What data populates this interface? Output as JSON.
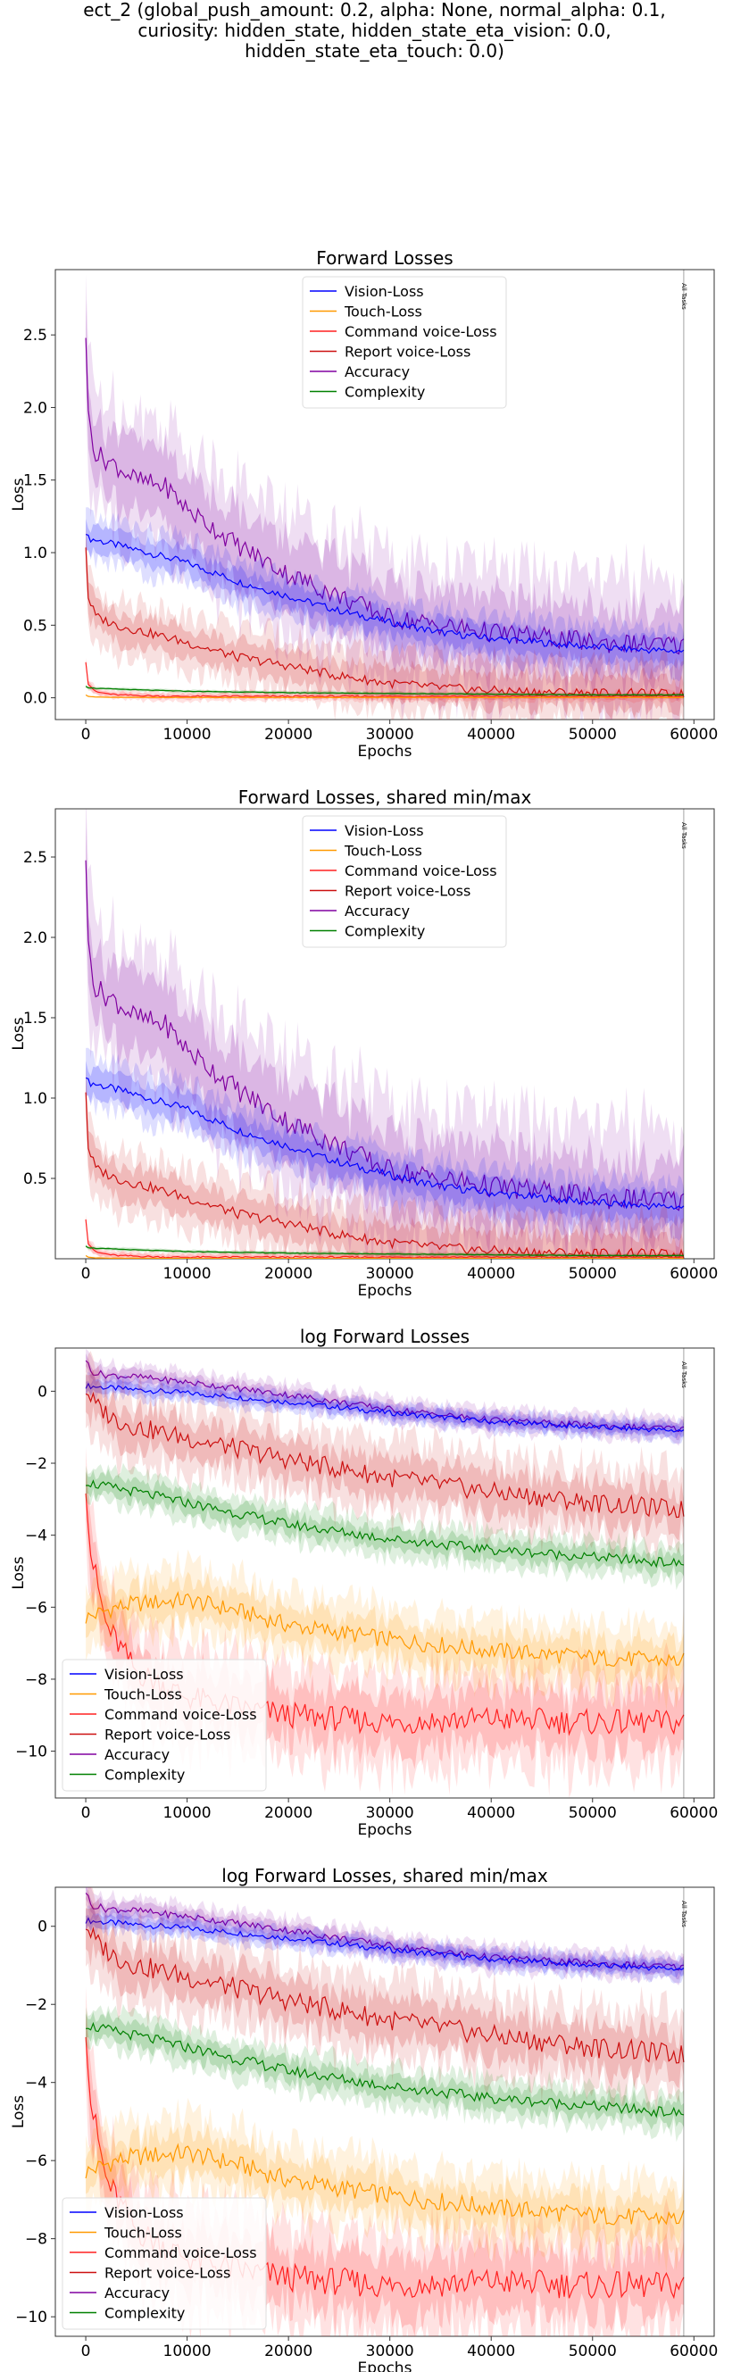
{
  "suptitle": [
    "ect_2 (global_push_amount: 0.2, alpha: None, normal_alpha: 0.1,",
    "curiosity: hidden_state, hidden_state_eta_vision: 0.0,",
    "hidden_state_eta_touch: 0.0)"
  ],
  "colors": {
    "Vision-Loss": "#0000ff",
    "Touch-Loss": "#ff9900",
    "Command voice-Loss": "#ff2020",
    "Report voice-Loss": "#cc1010",
    "Accuracy": "#8000a0",
    "Complexity": "#008000"
  },
  "chart_data": [
    {
      "type": "line",
      "title": "Forward Losses",
      "xlabel": "Epochs",
      "ylabel": "Loss",
      "xlim": [
        -3000,
        62000
      ],
      "ylim": [
        -0.15,
        2.95
      ],
      "xticks": [
        0,
        10000,
        20000,
        30000,
        40000,
        50000,
        60000
      ],
      "yticks": [
        0.0,
        0.5,
        1.0,
        1.5,
        2.0,
        2.5
      ],
      "ytick_labels": [
        "0.0",
        "0.5",
        "1.0",
        "1.5",
        "2.0",
        "2.5"
      ],
      "vline": {
        "x": 59000,
        "label": "All Tasks"
      },
      "legend": "upper center",
      "log": false,
      "series": [
        {
          "name": "Vision-Loss",
          "x": [
            0,
            200,
            2000,
            5000,
            10000,
            15000,
            20000,
            25000,
            30000,
            35000,
            40000,
            45000,
            50000,
            55000,
            59000
          ],
          "values": [
            1.15,
            1.1,
            1.07,
            1.02,
            0.93,
            0.8,
            0.7,
            0.6,
            0.52,
            0.45,
            0.41,
            0.38,
            0.35,
            0.33,
            0.32
          ],
          "band": 0.14
        },
        {
          "name": "Touch-Loss",
          "x": [
            0,
            200,
            1000,
            3000,
            10000,
            20000,
            30000,
            40000,
            50000,
            59000
          ],
          "values": [
            0.02,
            0.01,
            0.005,
            0.003,
            0.002,
            0.002,
            0.002,
            0.002,
            0.002,
            0.002
          ],
          "band": 0.005
        },
        {
          "name": "Command voice-Loss",
          "x": [
            0,
            200,
            1000,
            3000,
            8000,
            15000,
            20000,
            30000,
            40000,
            50000,
            59000
          ],
          "values": [
            0.25,
            0.1,
            0.04,
            0.02,
            0.01,
            0.01,
            0.01,
            0.01,
            0.01,
            0.01,
            0.01
          ],
          "band": 0.03
        },
        {
          "name": "Report voice-Loss",
          "x": [
            0,
            200,
            1000,
            3000,
            6000,
            10000,
            15000,
            20000,
            25000,
            30000,
            35000,
            40000,
            45000,
            50000,
            55000,
            59000
          ],
          "values": [
            1.05,
            0.7,
            0.56,
            0.5,
            0.45,
            0.38,
            0.28,
            0.22,
            0.15,
            0.1,
            0.07,
            0.05,
            0.04,
            0.035,
            0.03,
            0.025
          ],
          "band": 0.18
        },
        {
          "name": "Accuracy",
          "x": [
            0,
            200,
            1000,
            3000,
            5000,
            8000,
            10000,
            15000,
            20000,
            25000,
            30000,
            35000,
            40000,
            45000,
            50000,
            55000,
            59000
          ],
          "values": [
            2.52,
            1.95,
            1.68,
            1.6,
            1.5,
            1.45,
            1.3,
            1.05,
            0.85,
            0.7,
            0.55,
            0.5,
            0.45,
            0.42,
            0.38,
            0.37,
            0.36
          ],
          "band": 0.4
        },
        {
          "name": "Complexity",
          "x": [
            0,
            200,
            1000,
            5000,
            10000,
            20000,
            30000,
            40000,
            50000,
            59000
          ],
          "values": [
            0.08,
            0.07,
            0.065,
            0.055,
            0.045,
            0.035,
            0.03,
            0.025,
            0.02,
            0.02
          ],
          "band": 0.01
        }
      ]
    },
    {
      "type": "line",
      "title": "Forward Losses, shared min/max",
      "xlabel": "Epochs",
      "ylabel": "Loss",
      "xlim": [
        -3000,
        62000
      ],
      "ylim": [
        0.0,
        2.8
      ],
      "xticks": [
        0,
        10000,
        20000,
        30000,
        40000,
        50000,
        60000
      ],
      "yticks": [
        0.5,
        1.0,
        1.5,
        2.0,
        2.5
      ],
      "ytick_labels": [
        "0.5",
        "1.0",
        "1.5",
        "2.0",
        "2.5"
      ],
      "vline": {
        "x": 59000,
        "label": "All Tasks"
      },
      "legend": "upper center",
      "log": false,
      "series": [
        {
          "name": "Vision-Loss",
          "x": [
            0,
            200,
            2000,
            5000,
            10000,
            15000,
            20000,
            25000,
            30000,
            35000,
            40000,
            45000,
            50000,
            55000,
            59000
          ],
          "values": [
            1.15,
            1.1,
            1.07,
            1.02,
            0.93,
            0.8,
            0.7,
            0.6,
            0.52,
            0.45,
            0.41,
            0.38,
            0.35,
            0.33,
            0.32
          ],
          "band": 0.14
        },
        {
          "name": "Touch-Loss",
          "x": [
            0,
            200,
            1000,
            3000,
            10000,
            20000,
            30000,
            40000,
            50000,
            59000
          ],
          "values": [
            0.02,
            0.01,
            0.005,
            0.003,
            0.002,
            0.002,
            0.002,
            0.002,
            0.002,
            0.002
          ],
          "band": 0.005
        },
        {
          "name": "Command voice-Loss",
          "x": [
            0,
            200,
            1000,
            3000,
            8000,
            15000,
            20000,
            30000,
            40000,
            50000,
            59000
          ],
          "values": [
            0.25,
            0.1,
            0.04,
            0.02,
            0.01,
            0.01,
            0.01,
            0.01,
            0.01,
            0.01,
            0.01
          ],
          "band": 0.03
        },
        {
          "name": "Report voice-Loss",
          "x": [
            0,
            200,
            1000,
            3000,
            6000,
            10000,
            15000,
            20000,
            25000,
            30000,
            35000,
            40000,
            45000,
            50000,
            55000,
            59000
          ],
          "values": [
            1.05,
            0.7,
            0.56,
            0.5,
            0.45,
            0.38,
            0.28,
            0.22,
            0.15,
            0.1,
            0.07,
            0.05,
            0.04,
            0.035,
            0.03,
            0.025
          ],
          "band": 0.18
        },
        {
          "name": "Accuracy",
          "x": [
            0,
            200,
            1000,
            3000,
            5000,
            8000,
            10000,
            15000,
            20000,
            25000,
            30000,
            35000,
            40000,
            45000,
            50000,
            55000,
            59000
          ],
          "values": [
            2.52,
            1.95,
            1.68,
            1.6,
            1.5,
            1.45,
            1.3,
            1.05,
            0.85,
            0.7,
            0.55,
            0.5,
            0.45,
            0.42,
            0.38,
            0.37,
            0.36
          ],
          "band": 0.4
        },
        {
          "name": "Complexity",
          "x": [
            0,
            200,
            1000,
            5000,
            10000,
            20000,
            30000,
            40000,
            50000,
            59000
          ],
          "values": [
            0.08,
            0.07,
            0.065,
            0.055,
            0.045,
            0.035,
            0.03,
            0.025,
            0.02,
            0.02
          ],
          "band": 0.01
        }
      ]
    },
    {
      "type": "line",
      "title": "log Forward Losses",
      "xlabel": "Epochs",
      "ylabel": "Loss",
      "xlim": [
        -3000,
        62000
      ],
      "ylim": [
        -11.3,
        1.2
      ],
      "xticks": [
        0,
        10000,
        20000,
        30000,
        40000,
        50000,
        60000
      ],
      "yticks": [
        0,
        -2,
        -4,
        -6,
        -8,
        -10
      ],
      "ytick_labels": [
        "0",
        "−2",
        "−4",
        "−6",
        "−8",
        "−10"
      ],
      "vline": {
        "x": 59000,
        "label": "All Tasks"
      },
      "legend": "lower left",
      "log": true,
      "series": [
        {
          "name": "Vision-Loss",
          "x": [
            0,
            2000,
            10000,
            20000,
            30000,
            40000,
            50000,
            59000
          ],
          "values": [
            0.15,
            0.1,
            -0.05,
            -0.3,
            -0.6,
            -0.85,
            -1.0,
            -1.1
          ],
          "band": 0.25
        },
        {
          "name": "Touch-Loss",
          "x": [
            0,
            1000,
            3000,
            5000,
            10000,
            15000,
            20000,
            30000,
            40000,
            50000,
            59000
          ],
          "values": [
            -6.3,
            -6.2,
            -6.0,
            -5.9,
            -5.8,
            -6.1,
            -6.5,
            -6.9,
            -7.2,
            -7.4,
            -7.5
          ],
          "band": 0.8
        },
        {
          "name": "Command voice-Loss",
          "x": [
            0,
            500,
            2000,
            5000,
            10000,
            15000,
            20000,
            30000,
            40000,
            50000,
            59000
          ],
          "values": [
            -2.5,
            -4.5,
            -6.5,
            -7.8,
            -8.5,
            -8.8,
            -9.0,
            -9.2,
            -9.1,
            -9.2,
            -9.2
          ],
          "band": 1.2
        },
        {
          "name": "Report voice-Loss",
          "x": [
            0,
            1000,
            3000,
            5000,
            10000,
            15000,
            20000,
            30000,
            40000,
            50000,
            59000
          ],
          "values": [
            0.05,
            -0.4,
            -0.8,
            -1.0,
            -1.3,
            -1.6,
            -1.9,
            -2.4,
            -2.8,
            -3.1,
            -3.3
          ],
          "band": 0.9
        },
        {
          "name": "Accuracy",
          "x": [
            0,
            500,
            2000,
            5000,
            10000,
            20000,
            30000,
            40000,
            50000,
            59000
          ],
          "values": [
            0.9,
            0.55,
            0.45,
            0.4,
            0.25,
            -0.1,
            -0.5,
            -0.8,
            -0.95,
            -1.05
          ],
          "band": 0.3
        },
        {
          "name": "Complexity",
          "x": [
            0,
            1000,
            5000,
            10000,
            20000,
            30000,
            40000,
            50000,
            59000
          ],
          "values": [
            -2.5,
            -2.6,
            -2.8,
            -3.1,
            -3.7,
            -4.1,
            -4.4,
            -4.6,
            -4.8
          ],
          "band": 0.45
        }
      ]
    },
    {
      "type": "line",
      "title": "log Forward Losses, shared min/max",
      "xlabel": "Epochs",
      "ylabel": "Loss",
      "xlim": [
        -3000,
        62000
      ],
      "ylim": [
        -10.5,
        1.0
      ],
      "xticks": [
        0,
        10000,
        20000,
        30000,
        40000,
        50000,
        60000
      ],
      "yticks": [
        0,
        -2,
        -4,
        -6,
        -8,
        -10
      ],
      "ytick_labels": [
        "0",
        "−2",
        "−4",
        "−6",
        "−8",
        "−10"
      ],
      "vline": {
        "x": 59000,
        "label": "All Tasks"
      },
      "legend": "lower left",
      "log": true,
      "series": [
        {
          "name": "Vision-Loss",
          "x": [
            0,
            2000,
            10000,
            20000,
            30000,
            40000,
            50000,
            59000
          ],
          "values": [
            0.15,
            0.1,
            -0.05,
            -0.3,
            -0.6,
            -0.85,
            -1.0,
            -1.1
          ],
          "band": 0.25
        },
        {
          "name": "Touch-Loss",
          "x": [
            0,
            1000,
            3000,
            5000,
            10000,
            15000,
            20000,
            30000,
            40000,
            50000,
            59000
          ],
          "values": [
            -6.3,
            -6.2,
            -6.0,
            -5.9,
            -5.8,
            -6.1,
            -6.5,
            -6.9,
            -7.2,
            -7.4,
            -7.5
          ],
          "band": 0.8
        },
        {
          "name": "Command voice-Loss",
          "x": [
            0,
            500,
            2000,
            5000,
            10000,
            15000,
            20000,
            30000,
            40000,
            50000,
            59000
          ],
          "values": [
            -2.5,
            -4.5,
            -6.5,
            -7.8,
            -8.5,
            -8.8,
            -9.0,
            -9.2,
            -9.1,
            -9.2,
            -9.2
          ],
          "band": 1.2
        },
        {
          "name": "Report voice-Loss",
          "x": [
            0,
            1000,
            3000,
            5000,
            10000,
            15000,
            20000,
            30000,
            40000,
            50000,
            59000
          ],
          "values": [
            0.05,
            -0.4,
            -0.8,
            -1.0,
            -1.3,
            -1.6,
            -1.9,
            -2.4,
            -2.8,
            -3.1,
            -3.3
          ],
          "band": 0.9
        },
        {
          "name": "Accuracy",
          "x": [
            0,
            500,
            2000,
            5000,
            10000,
            20000,
            30000,
            40000,
            50000,
            59000
          ],
          "values": [
            0.9,
            0.55,
            0.45,
            0.4,
            0.25,
            -0.1,
            -0.5,
            -0.8,
            -0.95,
            -1.05
          ],
          "band": 0.3
        },
        {
          "name": "Complexity",
          "x": [
            0,
            1000,
            5000,
            10000,
            20000,
            30000,
            40000,
            50000,
            59000
          ],
          "values": [
            -2.5,
            -2.6,
            -2.8,
            -3.1,
            -3.7,
            -4.1,
            -4.4,
            -4.6,
            -4.8
          ],
          "band": 0.45
        }
      ]
    }
  ]
}
